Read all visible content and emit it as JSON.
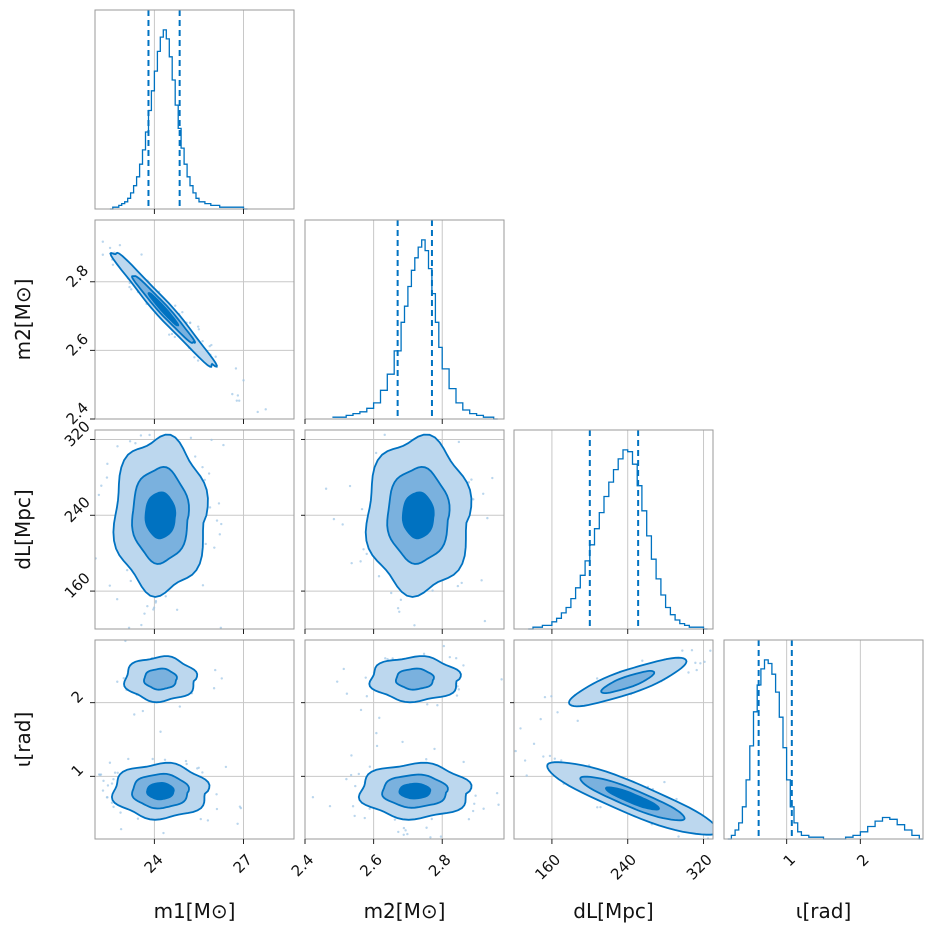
{
  "chart_data": {
    "type": "corner",
    "title": "",
    "parameters": [
      {
        "key": "m1",
        "label": "m1[M⊙]",
        "range": [
          22.0,
          28.7
        ],
        "ticks": [
          24,
          27
        ],
        "tick_labels": [
          "24",
          "27"
        ],
        "quantiles": [
          23.8,
          24.85
        ],
        "hist": [
          [
            22.5,
            0
          ],
          [
            22.6,
            1
          ],
          [
            22.7,
            1
          ],
          [
            22.8,
            2
          ],
          [
            22.9,
            3
          ],
          [
            23.0,
            4
          ],
          [
            23.1,
            6
          ],
          [
            23.2,
            9
          ],
          [
            23.3,
            13
          ],
          [
            23.4,
            18
          ],
          [
            23.5,
            25
          ],
          [
            23.6,
            33
          ],
          [
            23.7,
            43
          ],
          [
            23.8,
            55
          ],
          [
            23.9,
            66
          ],
          [
            24.0,
            77
          ],
          [
            24.1,
            88
          ],
          [
            24.2,
            96
          ],
          [
            24.3,
            100
          ],
          [
            24.4,
            95
          ],
          [
            24.5,
            85
          ],
          [
            24.6,
            72
          ],
          [
            24.7,
            58
          ],
          [
            24.8,
            45
          ],
          [
            24.9,
            34
          ],
          [
            25.0,
            25
          ],
          [
            25.1,
            18
          ],
          [
            25.2,
            13
          ],
          [
            25.3,
            9
          ],
          [
            25.4,
            6
          ],
          [
            25.5,
            4
          ],
          [
            25.7,
            3
          ],
          [
            25.9,
            2
          ],
          [
            26.2,
            1
          ],
          [
            26.6,
            1
          ],
          [
            27.0,
            0
          ]
        ]
      },
      {
        "key": "m2",
        "label": "m2[M⊙]",
        "range": [
          2.4,
          2.98
        ],
        "ticks": [
          2.4,
          2.6,
          2.8
        ],
        "tick_labels": [
          "2.4",
          "2.6",
          "2.8"
        ],
        "quantiles": [
          2.67,
          2.77
        ],
        "hist": [
          [
            2.48,
            1
          ],
          [
            2.5,
            1
          ],
          [
            2.52,
            2
          ],
          [
            2.54,
            3
          ],
          [
            2.56,
            4
          ],
          [
            2.58,
            6
          ],
          [
            2.6,
            9
          ],
          [
            2.62,
            16
          ],
          [
            2.64,
            25
          ],
          [
            2.66,
            38
          ],
          [
            2.68,
            54
          ],
          [
            2.69,
            63
          ],
          [
            2.7,
            74
          ],
          [
            2.71,
            83
          ],
          [
            2.72,
            90
          ],
          [
            2.73,
            96
          ],
          [
            2.74,
            100
          ],
          [
            2.75,
            94
          ],
          [
            2.76,
            84
          ],
          [
            2.77,
            70
          ],
          [
            2.78,
            54
          ],
          [
            2.79,
            40
          ],
          [
            2.8,
            28
          ],
          [
            2.82,
            17
          ],
          [
            2.84,
            9
          ],
          [
            2.86,
            5
          ],
          [
            2.88,
            3
          ],
          [
            2.9,
            2
          ],
          [
            2.92,
            1
          ],
          [
            2.95,
            0
          ]
        ]
      },
      {
        "key": "dL",
        "label": "dL[Mpc]",
        "range": [
          120,
          330
        ],
        "ticks": [
          160,
          240,
          320
        ],
        "tick_labels": [
          "160",
          "240",
          "320"
        ],
        "quantiles": [
          200,
          251
        ],
        "hist": [
          [
            135,
            0
          ],
          [
            140,
            1
          ],
          [
            150,
            2
          ],
          [
            160,
            4
          ],
          [
            165,
            6
          ],
          [
            170,
            9
          ],
          [
            175,
            12
          ],
          [
            180,
            17
          ],
          [
            185,
            23
          ],
          [
            190,
            30
          ],
          [
            195,
            38
          ],
          [
            200,
            47
          ],
          [
            205,
            56
          ],
          [
            210,
            65
          ],
          [
            215,
            74
          ],
          [
            220,
            82
          ],
          [
            225,
            89
          ],
          [
            230,
            95
          ],
          [
            235,
            100
          ],
          [
            240,
            99
          ],
          [
            245,
            92
          ],
          [
            250,
            80
          ],
          [
            255,
            66
          ],
          [
            260,
            52
          ],
          [
            265,
            39
          ],
          [
            270,
            28
          ],
          [
            275,
            19
          ],
          [
            280,
            12
          ],
          [
            285,
            8
          ],
          [
            290,
            5
          ],
          [
            295,
            3
          ],
          [
            300,
            2
          ],
          [
            305,
            1
          ],
          [
            310,
            1
          ],
          [
            320,
            0
          ]
        ]
      },
      {
        "key": "iota",
        "label": "ι[rad]",
        "range": [
          0.15,
          2.85
        ],
        "ticks": [
          1,
          2
        ],
        "tick_labels": [
          "1",
          "2"
        ],
        "quantiles": [
          0.62,
          1.07
        ],
        "hist": [
          [
            0.2,
            0
          ],
          [
            0.25,
            2
          ],
          [
            0.3,
            5
          ],
          [
            0.35,
            9
          ],
          [
            0.4,
            18
          ],
          [
            0.45,
            33
          ],
          [
            0.5,
            52
          ],
          [
            0.55,
            71
          ],
          [
            0.6,
            86
          ],
          [
            0.65,
            95
          ],
          [
            0.7,
            100
          ],
          [
            0.75,
            98
          ],
          [
            0.8,
            92
          ],
          [
            0.85,
            82
          ],
          [
            0.9,
            68
          ],
          [
            0.95,
            51
          ],
          [
            1.0,
            33
          ],
          [
            1.05,
            18
          ],
          [
            1.1,
            9
          ],
          [
            1.15,
            4
          ],
          [
            1.2,
            2
          ],
          [
            1.3,
            1
          ],
          [
            1.5,
            0
          ],
          [
            1.8,
            1
          ],
          [
            1.9,
            2
          ],
          [
            2.0,
            4
          ],
          [
            2.1,
            7
          ],
          [
            2.2,
            10
          ],
          [
            2.3,
            12
          ],
          [
            2.4,
            11
          ],
          [
            2.5,
            8
          ],
          [
            2.6,
            5
          ],
          [
            2.7,
            2
          ],
          [
            2.8,
            0
          ]
        ]
      }
    ],
    "pairs": [
      {
        "x": 0,
        "y": 1,
        "mode": [
          24.3,
          2.72
        ],
        "levels": [
          {
            "axis": "diag",
            "sx": 1.75,
            "sy": 0.17,
            "corr": -0.98,
            "frac": 0.95
          },
          {
            "axis": "diag",
            "sx": 1.05,
            "sy": 0.1,
            "corr": -0.98,
            "frac": 0.6
          },
          {
            "axis": "diag",
            "sx": 0.5,
            "sy": 0.048,
            "corr": -0.98,
            "frac": 0.3
          }
        ]
      },
      {
        "x": 0,
        "y": 2,
        "mode": [
          24.2,
          240
        ],
        "levels": [
          {
            "sx": 1.55,
            "sy": 82,
            "frac": 1.0
          },
          {
            "sx": 0.95,
            "sy": 50,
            "frac": 0.6
          },
          {
            "sx": 0.5,
            "sy": 24,
            "frac": 0.3
          }
        ]
      },
      {
        "x": 1,
        "y": 2,
        "mode": [
          2.73,
          240
        ],
        "levels": [
          {
            "sx": 0.15,
            "sy": 82,
            "frac": 1.0
          },
          {
            "sx": 0.09,
            "sy": 50,
            "frac": 0.6
          },
          {
            "sx": 0.045,
            "sy": 24,
            "frac": 0.3
          }
        ]
      },
      {
        "x": 0,
        "y": 3,
        "mode": [
          24.2,
          0.8
        ],
        "levels": [
          {
            "sx": 1.6,
            "sy": 0.37,
            "frac": 1.0
          },
          {
            "sx": 0.95,
            "sy": 0.23,
            "frac": 0.6
          },
          {
            "sx": 0.45,
            "sy": 0.11,
            "frac": 0.3
          }
        ],
        "mode2": [
          24.2,
          2.32
        ],
        "levels2": [
          {
            "sx": 1.2,
            "sy": 0.3,
            "frac": 1.0
          },
          {
            "sx": 0.55,
            "sy": 0.14,
            "frac": 0.6
          }
        ]
      },
      {
        "x": 1,
        "y": 3,
        "mode": [
          2.72,
          0.8
        ],
        "levels": [
          {
            "sx": 0.16,
            "sy": 0.37,
            "frac": 1.0
          },
          {
            "sx": 0.095,
            "sy": 0.22,
            "frac": 0.6
          },
          {
            "sx": 0.045,
            "sy": 0.1,
            "frac": 0.3
          }
        ],
        "mode2": [
          2.72,
          2.32
        ],
        "levels2": [
          {
            "sx": 0.13,
            "sy": 0.3,
            "frac": 1.0
          },
          {
            "sx": 0.055,
            "sy": 0.14,
            "frac": 0.6
          }
        ]
      },
      {
        "x": 2,
        "y": 3,
        "mode": [
          245,
          0.7
        ],
        "band_slope": -0.0049,
        "levels": [
          {
            "along": 90,
            "across": 0.23,
            "frac": 1.0
          },
          {
            "along": 55,
            "across": 0.13,
            "frac": 0.6
          },
          {
            "along": 28,
            "across": 0.065,
            "frac": 0.3
          }
        ],
        "mode2": [
          240,
          2.28
        ],
        "band_slope2": 0.0045,
        "levels2": [
          {
            "along": 62,
            "across": 0.17,
            "frac": 1.0
          },
          {
            "along": 28,
            "across": 0.08,
            "frac": 0.6
          }
        ]
      }
    ],
    "colors": {
      "main": "#0072c1",
      "fill_outer": "#bcd7ee",
      "fill_mid": "#7ab1de",
      "fill_inner": "#0072c1",
      "points": "#9cc4e6"
    }
  }
}
